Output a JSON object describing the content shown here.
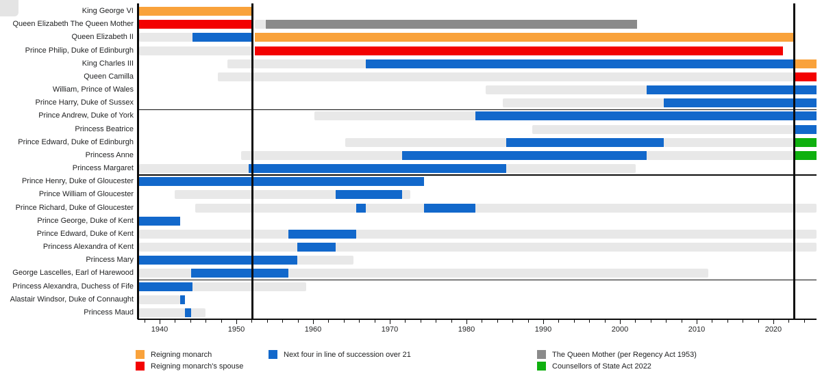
{
  "chart_data": {
    "type": "gantt-timeline",
    "title": "",
    "x_axis": {
      "start": 1937.32,
      "end": 2025.63,
      "ticks": [
        1940,
        1950,
        1960,
        1970,
        1980,
        1990,
        2000,
        2010,
        2020
      ],
      "minor_tick_step_years": 2
    },
    "event_lines": [
      {
        "name": "accession-of-elizabeth-ii",
        "year": 1952.12
      },
      {
        "name": "accession-of-charles-iii",
        "year": 2022.69
      }
    ],
    "colors": {
      "monarch": "#F9A23B",
      "spouse": "#F30202",
      "succession": "#1268CB",
      "queen_mother": "#8A8A8A",
      "act2022": "#0FB00F",
      "alive": "#E8E8E8",
      "line": "#0B0B0B"
    },
    "legend": [
      {
        "key": "monarch",
        "label": "Reigning monarch"
      },
      {
        "key": "spouse",
        "label": "Reigning monarch's spouse"
      },
      {
        "key": "succession",
        "label": "Next four in line of succession over 21"
      },
      {
        "key": "queen_mother",
        "label": "The Queen Mother (per Regency Act 1953)"
      },
      {
        "key": "act2022",
        "label": "Counsellors of State Act 2022"
      }
    ],
    "divider_after_rows": [
      8,
      13,
      21
    ],
    "rows": [
      {
        "label": "King George VI",
        "segments": [
          {
            "t": "monarch",
            "s": 1937.32,
            "e": 1952.12
          }
        ]
      },
      {
        "label": "Queen Elizabeth The Queen Mother",
        "segments": [
          {
            "t": "spouse",
            "s": 1937.32,
            "e": 1952.12
          },
          {
            "t": "alive",
            "s": 1952.45,
            "e": 1953.88
          },
          {
            "t": "queen_mother",
            "s": 1953.88,
            "e": 2002.25
          }
        ]
      },
      {
        "label": "Queen Elizabeth II",
        "segments": [
          {
            "t": "alive",
            "s": 1937.32,
            "e": 1944.31
          },
          {
            "t": "succession",
            "s": 1944.31,
            "e": 1952.12
          },
          {
            "t": "monarch",
            "s": 1952.45,
            "e": 2022.69
          }
        ]
      },
      {
        "label": "Prince Philip, Duke of Edinburgh",
        "segments": [
          {
            "t": "alive",
            "s": 1937.32,
            "e": 1952.12
          },
          {
            "t": "spouse",
            "s": 1952.45,
            "e": 2021.27
          }
        ]
      },
      {
        "label": "King Charles III",
        "segments": [
          {
            "t": "alive",
            "s": 1948.88,
            "e": 1966.87
          },
          {
            "t": "succession",
            "s": 1966.87,
            "e": 2022.69
          },
          {
            "t": "monarch",
            "s": 2022.87,
            "e": 2025.63
          }
        ]
      },
      {
        "label": "Queen Camilla",
        "segments": [
          {
            "t": "alive",
            "s": 1947.55,
            "e": 2022.69
          },
          {
            "t": "spouse",
            "s": 2022.87,
            "e": 2025.63
          }
        ]
      },
      {
        "label": "William, Prince of Wales",
        "segments": [
          {
            "t": "alive",
            "s": 1982.47,
            "e": 2003.47
          },
          {
            "t": "succession",
            "s": 2003.47,
            "e": 2025.63
          }
        ]
      },
      {
        "label": "Prince Harry, Duke of Sussex",
        "segments": [
          {
            "t": "alive",
            "s": 1984.71,
            "e": 2005.71
          },
          {
            "t": "succession",
            "s": 2005.71,
            "e": 2025.63
          }
        ]
      },
      {
        "label": "Prince Andrew, Duke of York",
        "segments": [
          {
            "t": "alive",
            "s": 1960.14,
            "e": 1981.14
          },
          {
            "t": "succession",
            "s": 1981.14,
            "e": 2025.63
          }
        ]
      },
      {
        "label": "Princess Beatrice",
        "segments": [
          {
            "t": "alive",
            "s": 1988.6,
            "e": 2022.69
          },
          {
            "t": "succession",
            "s": 2022.87,
            "e": 2025.63
          }
        ]
      },
      {
        "label": "Prince Edward, Duke of Edinburgh",
        "segments": [
          {
            "t": "alive",
            "s": 1964.19,
            "e": 1985.19
          },
          {
            "t": "succession",
            "s": 1985.19,
            "e": 2005.71
          },
          {
            "t": "alive",
            "s": 2005.71,
            "e": 2022.69
          },
          {
            "t": "act2022",
            "s": 2022.87,
            "e": 2025.63
          }
        ]
      },
      {
        "label": "Princess Anne",
        "segments": [
          {
            "t": "alive",
            "s": 1950.62,
            "e": 1971.64
          },
          {
            "t": "succession",
            "s": 1971.64,
            "e": 2003.47
          },
          {
            "t": "alive",
            "s": 2003.47,
            "e": 2022.69
          },
          {
            "t": "act2022",
            "s": 2022.87,
            "e": 2025.63
          }
        ]
      },
      {
        "label": "Princess Margaret",
        "segments": [
          {
            "t": "alive",
            "s": 1937.32,
            "e": 1951.64
          },
          {
            "t": "succession",
            "s": 1951.64,
            "e": 1985.19
          },
          {
            "t": "alive",
            "s": 1985.19,
            "e": 2002.09
          }
        ]
      },
      {
        "label": "Prince Henry, Duke of Gloucester",
        "segments": [
          {
            "t": "succession",
            "s": 1937.32,
            "e": 1974.44
          }
        ]
      },
      {
        "label": "Prince William of Gloucester",
        "segments": [
          {
            "t": "alive",
            "s": 1941.96,
            "e": 1962.96
          },
          {
            "t": "succession",
            "s": 1962.96,
            "e": 1971.64
          },
          {
            "t": "alive",
            "s": 1971.64,
            "e": 1972.66
          }
        ]
      },
      {
        "label": "Prince Richard, Duke of Gloucester",
        "segments": [
          {
            "t": "alive",
            "s": 1944.65,
            "e": 1965.65
          },
          {
            "t": "succession",
            "s": 1965.65,
            "e": 1966.87
          },
          {
            "t": "alive",
            "s": 1966.87,
            "e": 1974.44
          },
          {
            "t": "succession",
            "s": 1974.44,
            "e": 1981.14
          },
          {
            "t": "alive",
            "s": 1981.14,
            "e": 2025.63
          }
        ]
      },
      {
        "label": "Prince George, Duke of Kent",
        "segments": [
          {
            "t": "succession",
            "s": 1937.32,
            "e": 1942.65
          }
        ]
      },
      {
        "label": "Prince Edward, Duke of Kent",
        "segments": [
          {
            "t": "alive",
            "s": 1937.32,
            "e": 1956.77
          },
          {
            "t": "succession",
            "s": 1956.77,
            "e": 1965.65
          },
          {
            "t": "alive",
            "s": 1965.65,
            "e": 2025.63
          }
        ]
      },
      {
        "label": "Princess Alexandra of Kent",
        "segments": [
          {
            "t": "alive",
            "s": 1937.32,
            "e": 1957.98
          },
          {
            "t": "succession",
            "s": 1957.98,
            "e": 1962.96
          },
          {
            "t": "alive",
            "s": 1962.96,
            "e": 2025.63
          }
        ]
      },
      {
        "label": "Princess Mary",
        "segments": [
          {
            "t": "succession",
            "s": 1937.32,
            "e": 1957.98
          },
          {
            "t": "alive",
            "s": 1957.98,
            "e": 1965.24
          }
        ]
      },
      {
        "label": "George Lascelles, Earl of Harewood",
        "segments": [
          {
            "t": "alive",
            "s": 1937.32,
            "e": 1944.1
          },
          {
            "t": "succession",
            "s": 1944.1,
            "e": 1956.77
          },
          {
            "t": "alive",
            "s": 1956.77,
            "e": 2011.52
          }
        ]
      },
      {
        "label": "Princess Alexandra, Duchess of Fife",
        "segments": [
          {
            "t": "succession",
            "s": 1937.32,
            "e": 1944.31
          },
          {
            "t": "alive",
            "s": 1944.31,
            "e": 1959.15
          }
        ]
      },
      {
        "label": "Alastair Windsor, Duke of Connaught",
        "segments": [
          {
            "t": "alive",
            "s": 1937.32,
            "e": 1942.65
          },
          {
            "t": "succession",
            "s": 1942.65,
            "e": 1943.32
          }
        ]
      },
      {
        "label": "Princess Maud",
        "segments": [
          {
            "t": "alive",
            "s": 1937.32,
            "e": 1943.32
          },
          {
            "t": "succession",
            "s": 1943.32,
            "e": 1944.1
          },
          {
            "t": "alive",
            "s": 1944.1,
            "e": 1945.95
          }
        ]
      }
    ]
  }
}
